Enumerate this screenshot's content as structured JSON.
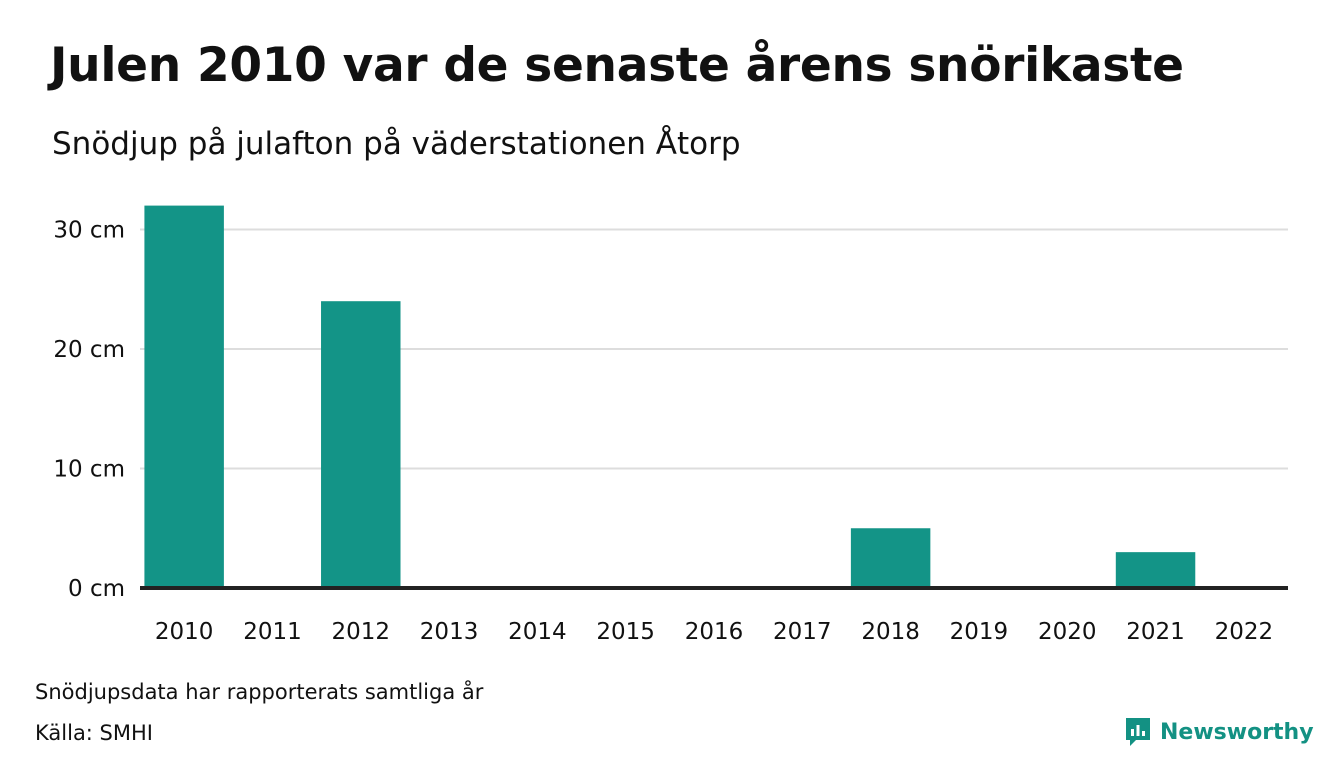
{
  "header": {
    "title": "Julen 2010 var de senaste årens snörikaste",
    "subtitle": "Snödjup på julafton på väderstationen Åtorp"
  },
  "footer": {
    "note": "Snödjupsdata har rapporterats samtliga år",
    "source": "Källa: SMHI"
  },
  "logo": {
    "text": "Newsworthy",
    "color": "#139183",
    "icon": "newsworthy-logo-icon"
  },
  "chart_data": {
    "type": "bar",
    "categories": [
      "2010",
      "2011",
      "2012",
      "2013",
      "2014",
      "2015",
      "2016",
      "2017",
      "2018",
      "2019",
      "2020",
      "2021",
      "2022"
    ],
    "values": [
      32,
      0,
      24,
      0,
      0,
      0,
      0,
      0,
      5,
      0,
      0,
      3,
      0
    ],
    "title": "Julen 2010 var de senaste årens snörikaste",
    "subtitle": "Snödjup på julafton på väderstationen Åtorp",
    "xlabel": "",
    "ylabel": "",
    "ylim": [
      0,
      32
    ],
    "yticks": [
      0,
      10,
      20,
      30
    ],
    "ytick_labels": [
      "0 cm",
      "10 cm",
      "20 cm",
      "30 cm"
    ],
    "grid": true,
    "legend": "none",
    "bar_color": "#139487",
    "grid_color": "#dddddd",
    "baseline_color": "#222222"
  }
}
